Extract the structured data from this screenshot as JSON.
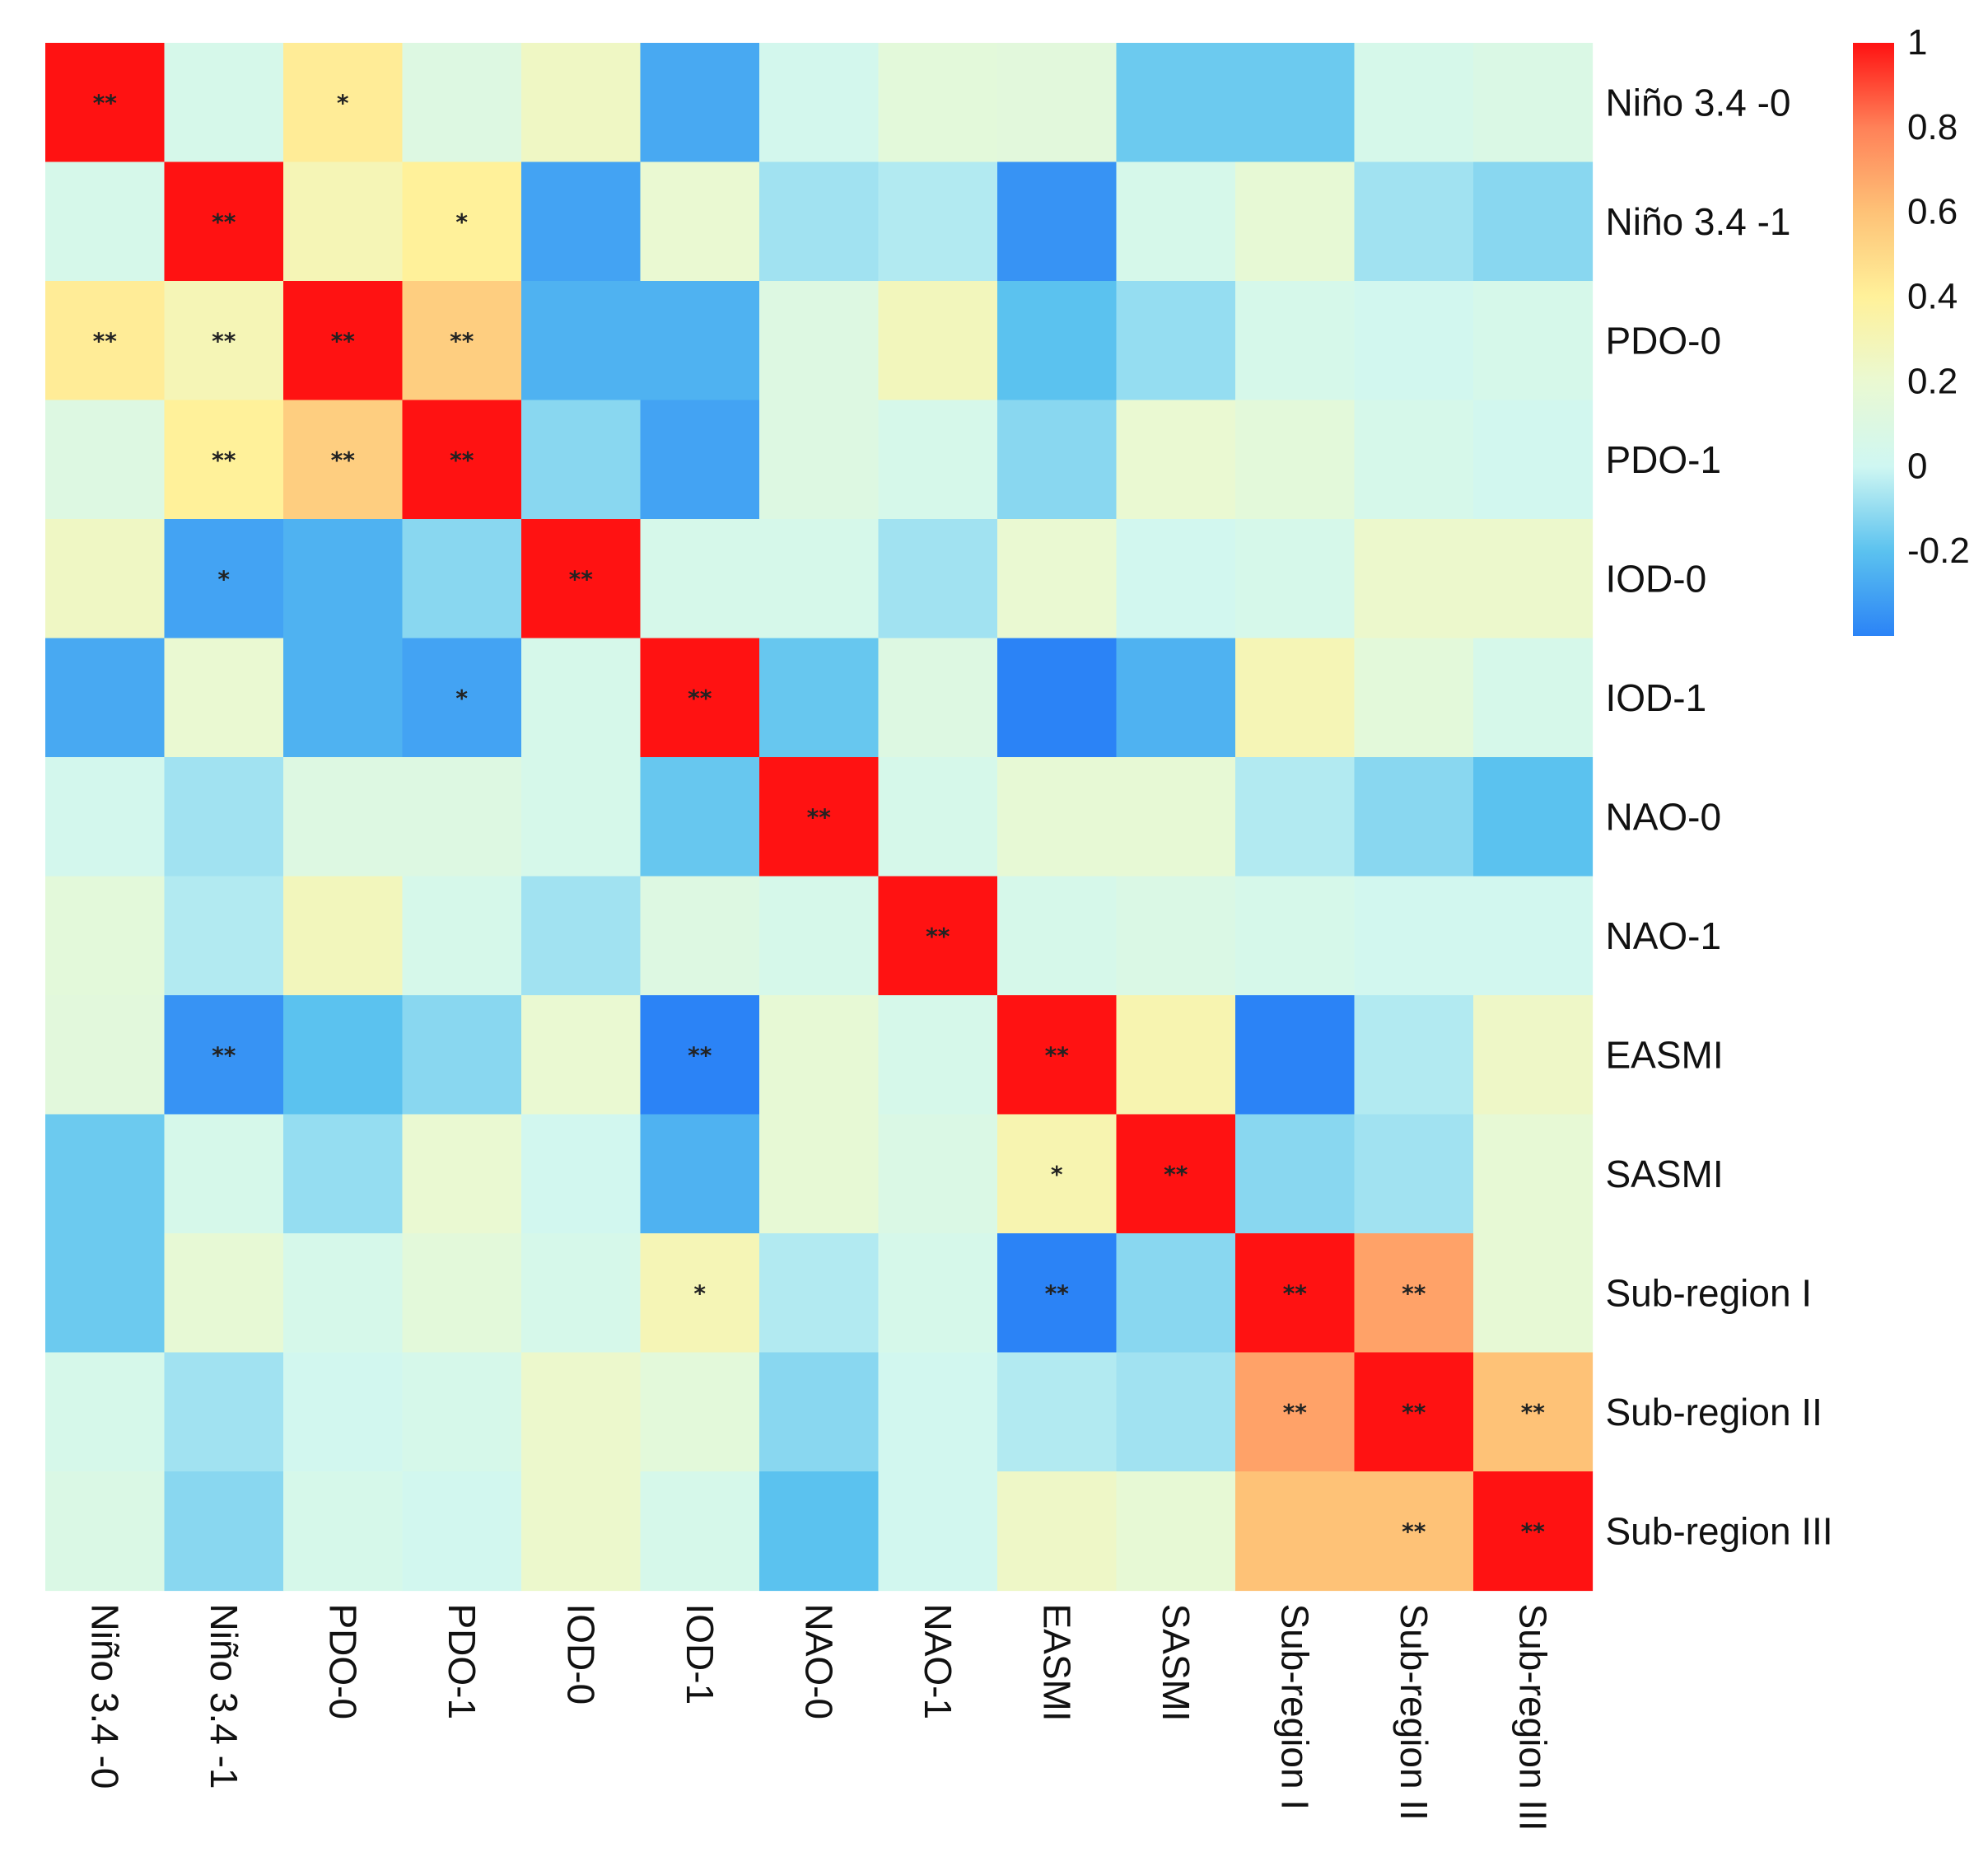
{
  "chart_data": {
    "type": "heatmap",
    "title": "",
    "variables": [
      "Niño 3.4 -0",
      "Niño 3.4 -1",
      "PDO-0",
      "PDO-1",
      "IOD-0",
      "IOD-1",
      "NAO-0",
      "NAO-1",
      "EASMI",
      "SASMI",
      "Sub-region I",
      "Sub-region II",
      "Sub-region III"
    ],
    "values": [
      [
        1.0,
        0.05,
        0.42,
        0.1,
        0.25,
        -0.28,
        0.03,
        0.15,
        0.14,
        -0.17,
        -0.17,
        0.05,
        0.08
      ],
      [
        0.05,
        1.0,
        0.3,
        0.4,
        -0.3,
        0.2,
        -0.08,
        -0.05,
        -0.35,
        0.05,
        0.18,
        -0.08,
        -0.12
      ],
      [
        0.42,
        0.3,
        1.0,
        0.55,
        -0.25,
        -0.25,
        0.1,
        0.28,
        -0.2,
        -0.1,
        0.05,
        0.02,
        0.05
      ],
      [
        0.1,
        0.4,
        0.55,
        1.0,
        -0.12,
        -0.3,
        0.1,
        0.05,
        -0.12,
        0.2,
        0.15,
        0.05,
        0.02
      ],
      [
        0.25,
        -0.3,
        -0.25,
        -0.12,
        1.0,
        0.05,
        0.05,
        -0.08,
        0.2,
        0.02,
        0.05,
        0.22,
        0.22
      ],
      [
        -0.28,
        0.2,
        -0.25,
        -0.3,
        0.05,
        1.0,
        -0.18,
        0.1,
        -0.4,
        -0.25,
        0.3,
        0.15,
        0.05
      ],
      [
        0.03,
        -0.08,
        0.1,
        0.1,
        0.05,
        -0.18,
        1.0,
        0.05,
        0.18,
        0.18,
        -0.05,
        -0.12,
        -0.2
      ],
      [
        0.15,
        -0.05,
        0.28,
        0.05,
        -0.08,
        0.1,
        0.05,
        1.0,
        0.05,
        0.08,
        0.05,
        0.02,
        0.02
      ],
      [
        0.14,
        -0.35,
        -0.2,
        -0.12,
        0.2,
        -0.4,
        0.18,
        0.05,
        1.0,
        0.32,
        -0.4,
        -0.05,
        0.24
      ],
      [
        -0.17,
        0.05,
        -0.1,
        0.2,
        0.02,
        -0.25,
        0.18,
        0.08,
        0.32,
        1.0,
        -0.12,
        -0.08,
        0.18
      ],
      [
        -0.17,
        0.18,
        0.05,
        0.15,
        0.05,
        0.3,
        -0.05,
        0.05,
        -0.4,
        -0.12,
        1.0,
        0.7,
        0.18
      ],
      [
        0.05,
        -0.08,
        0.02,
        0.05,
        0.22,
        0.15,
        -0.12,
        0.02,
        -0.05,
        -0.08,
        0.7,
        1.0,
        0.6
      ],
      [
        0.08,
        -0.12,
        0.05,
        0.02,
        0.22,
        0.05,
        -0.2,
        0.02,
        0.24,
        0.18,
        0.6,
        0.6,
        1.0
      ]
    ],
    "significance": [
      [
        "**",
        "",
        "*",
        "",
        "",
        "",
        "",
        "",
        "",
        "",
        "",
        "",
        ""
      ],
      [
        "",
        "**",
        "",
        "*",
        "",
        "",
        "",
        "",
        "",
        "",
        "",
        "",
        ""
      ],
      [
        "**",
        "**",
        "**",
        "**",
        "",
        "",
        "",
        "",
        "",
        "",
        "",
        "",
        ""
      ],
      [
        "",
        "**",
        "**",
        "**",
        "",
        "",
        "",
        "",
        "",
        "",
        "",
        "",
        ""
      ],
      [
        "",
        "*",
        "",
        "",
        "**",
        "",
        "",
        "",
        "",
        "",
        "",
        "",
        ""
      ],
      [
        "",
        "",
        "",
        "*",
        "",
        "**",
        "",
        "",
        "",
        "",
        "",
        "",
        ""
      ],
      [
        "",
        "",
        "",
        "",
        "",
        "",
        "**",
        "",
        "",
        "",
        "",
        "",
        ""
      ],
      [
        "",
        "",
        "",
        "",
        "",
        "",
        "",
        "**",
        "",
        "",
        "",
        "",
        ""
      ],
      [
        "",
        "**",
        "",
        "",
        "",
        "**",
        "",
        "",
        "**",
        "",
        "",
        "",
        ""
      ],
      [
        "",
        "",
        "",
        "",
        "",
        "",
        "",
        "",
        "*",
        "**",
        "",
        "",
        ""
      ],
      [
        "",
        "",
        "",
        "",
        "",
        "*",
        "",
        "",
        "**",
        "",
        "**",
        "**",
        ""
      ],
      [
        "",
        "",
        "",
        "",
        "",
        "",
        "",
        "",
        "",
        "",
        "**",
        "**",
        "**"
      ],
      [
        "",
        "",
        "",
        "",
        "",
        "",
        "",
        "",
        "",
        "",
        "",
        "**",
        "**"
      ]
    ],
    "color_range": [
      -0.4,
      1.0
    ],
    "color_stops": [
      {
        "value": -0.4,
        "color": "#2b83f6"
      },
      {
        "value": -0.2,
        "color": "#5bc2ef"
      },
      {
        "value": 0.0,
        "color": "#cff7f2"
      },
      {
        "value": 0.2,
        "color": "#eaf9d2"
      },
      {
        "value": 0.4,
        "color": "#fff19a"
      },
      {
        "value": 0.6,
        "color": "#fec277"
      },
      {
        "value": 0.8,
        "color": "#ff8158"
      },
      {
        "value": 1.0,
        "color": "#ff1212"
      }
    ],
    "legend": {
      "position": "right",
      "ticks": [
        1,
        0.8,
        0.6,
        0.4,
        0.2,
        0,
        -0.2
      ],
      "tick_labels": [
        "1",
        "0.8",
        "0.6",
        "0.4",
        "0.2",
        "0",
        "-0.2"
      ]
    },
    "row_label_position": "right",
    "col_label_position": "bottom",
    "col_label_rotation": "vertical"
  }
}
